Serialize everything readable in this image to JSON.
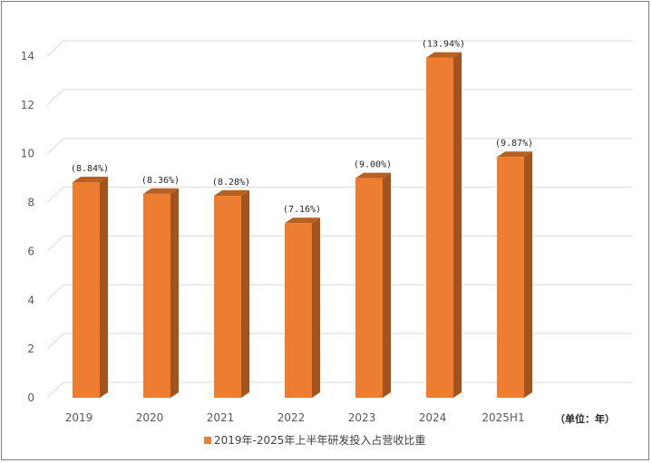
{
  "chart_data": {
    "type": "bar",
    "categories": [
      "2019",
      "2020",
      "2021",
      "2022",
      "2023",
      "2024",
      "2025H1"
    ],
    "series": [
      {
        "name": "2019年-2025年上半年研发投入占营收比重",
        "values": [
          8.84,
          8.36,
          8.28,
          7.16,
          9.0,
          13.94,
          9.87
        ],
        "data_labels": [
          "(8.84%)",
          "(8.36%)",
          "(8.28%)",
          "(7.16%)",
          "(9.00%)",
          "(13.94%)",
          "(9.87%)"
        ]
      }
    ],
    "ylim": [
      0,
      14
    ],
    "yticks": [
      "0",
      "2",
      "4",
      "6",
      "8",
      "10",
      "12",
      "14"
    ],
    "unit_note": "（单位：年）",
    "grid": true,
    "legend_position": "bottom",
    "colors": {
      "bar_front": "#ED7D31",
      "bar_side": "#A3531D",
      "bar_top": "#B8601F",
      "grid": "#D9D9D9"
    }
  }
}
